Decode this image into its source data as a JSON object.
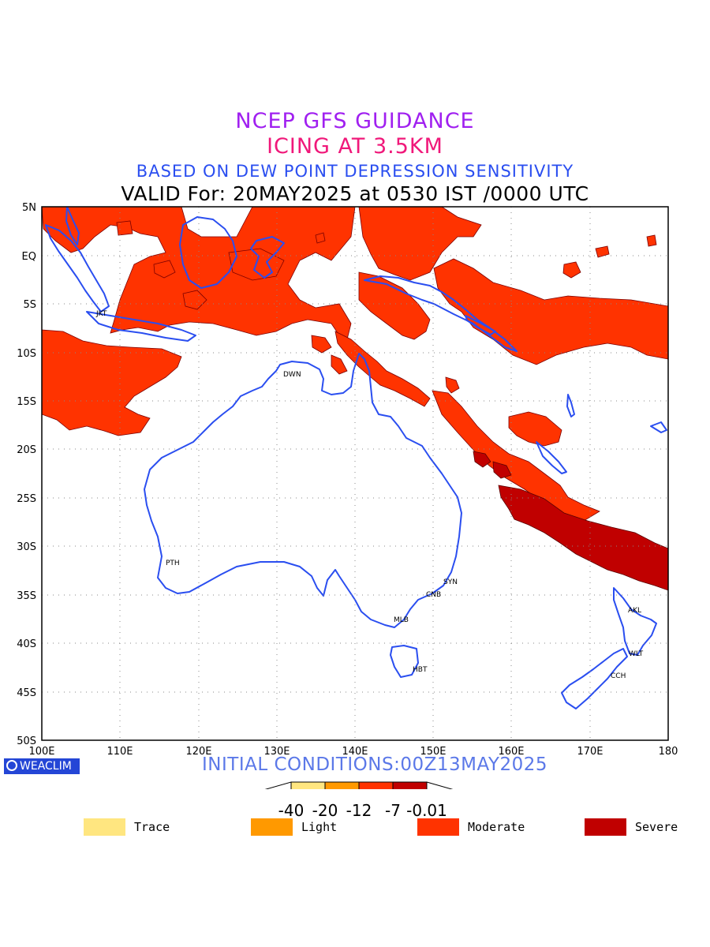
{
  "titles": {
    "line1": "NCEP GFS GUIDANCE",
    "line2": "ICING AT 3.5KM",
    "line3": "BASED ON DEW POINT DEPRESSION SENSITIVITY",
    "line4": "VALID For: 20MAY2025 at 0530 IST /0000 UTC"
  },
  "map": {
    "lat_labels": [
      "5N",
      "EQ",
      "5S",
      "10S",
      "15S",
      "20S",
      "25S",
      "30S",
      "35S",
      "40S",
      "45S",
      "50S"
    ],
    "lon_labels": [
      "100E",
      "110E",
      "120E",
      "130E",
      "140E",
      "150E",
      "160E",
      "170E",
      "180"
    ],
    "lat_range": [
      -50,
      5
    ],
    "lon_range": [
      100,
      180
    ],
    "grid": true,
    "coastline_color": "#2a4ef0",
    "cities": [
      {
        "code": "JKT",
        "lon": 106.8,
        "lat": -6.2
      },
      {
        "code": "DWN",
        "lon": 130.8,
        "lat": -12.4
      },
      {
        "code": "PTH",
        "lon": 115.8,
        "lat": -31.9
      },
      {
        "code": "SYN",
        "lon": 151.2,
        "lat": -33.9
      },
      {
        "code": "CNB",
        "lon": 149.1,
        "lat": -35.3
      },
      {
        "code": "MLB",
        "lon": 144.9,
        "lat": -37.8
      },
      {
        "code": "HBT",
        "lon": 147.3,
        "lat": -42.9
      },
      {
        "code": "AKL",
        "lon": 174.7,
        "lat": -36.9
      },
      {
        "code": "WLT",
        "lon": 174.8,
        "lat": -41.3
      },
      {
        "code": "CCH",
        "lon": 172.6,
        "lat": -43.5
      }
    ]
  },
  "footer": {
    "brand": "WEACLIM",
    "initial_conditions": "INITIAL CONDITIONS:00Z13MAY2025"
  },
  "colorbar": {
    "colors": [
      "#ffe680",
      "#ff9900",
      "#ff3300",
      "#c00000"
    ],
    "tick_labels": [
      "-40",
      "-20",
      "-12",
      "-7",
      "-0.01"
    ]
  },
  "legend": [
    {
      "label": "Trace",
      "color": "#ffe680"
    },
    {
      "label": "Light",
      "color": "#ff9900"
    },
    {
      "label": "Moderate",
      "color": "#ff3300"
    },
    {
      "label": "Severe",
      "color": "#c00000"
    }
  ]
}
